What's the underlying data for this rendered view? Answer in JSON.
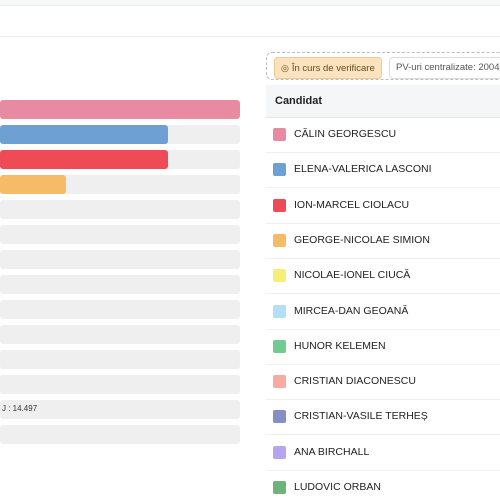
{
  "status": {
    "verifying_label": "În curs de verificare",
    "pv_label": "PV-uri centralizate: 2004"
  },
  "table": {
    "header": "Candidat"
  },
  "bars": [
    {
      "fraction": 1.0,
      "color": "#e98aa3",
      "label": ""
    },
    {
      "fraction": 0.7,
      "color": "#6fa0d4",
      "label": ""
    },
    {
      "fraction": 0.7,
      "color": "#ef4b57",
      "label": ""
    },
    {
      "fraction": 0.275,
      "color": "#f5bb66",
      "label": ""
    },
    {
      "fraction": 0,
      "color": "#efefef",
      "label": ""
    },
    {
      "fraction": 0,
      "color": "#efefef",
      "label": ""
    },
    {
      "fraction": 0,
      "color": "#efefef",
      "label": ""
    },
    {
      "fraction": 0,
      "color": "#efefef",
      "label": ""
    },
    {
      "fraction": 0,
      "color": "#efefef",
      "label": ""
    },
    {
      "fraction": 0,
      "color": "#efefef",
      "label": ""
    },
    {
      "fraction": 0,
      "color": "#efefef",
      "label": ""
    },
    {
      "fraction": 0,
      "color": "#efefef",
      "label": ""
    },
    {
      "fraction": 0,
      "color": "#efefef",
      "label": "J : 14.497"
    },
    {
      "fraction": 0,
      "color": "#efefef",
      "label": ""
    }
  ],
  "candidates": [
    {
      "name": "CĂLIN GEORGESCU",
      "color": "#e98aa3"
    },
    {
      "name": "ELENA-VALERICA LASCONI",
      "color": "#6fa0d4"
    },
    {
      "name": "ION-MARCEL CIOLACU",
      "color": "#ef4b57"
    },
    {
      "name": "GEORGE-NICOLAE SIMION",
      "color": "#f5bb66"
    },
    {
      "name": "NICOLAE-IONEL CIUCĂ",
      "color": "#f6ee78"
    },
    {
      "name": "MIRCEA-DAN GEOANĂ",
      "color": "#b5def8"
    },
    {
      "name": "HUNOR KELEMEN",
      "color": "#72cc92"
    },
    {
      "name": "CRISTIAN DIACONESCU",
      "color": "#f5aaa2"
    },
    {
      "name": "CRISTIAN-VASILE TERHEȘ",
      "color": "#848fc4"
    },
    {
      "name": "ANA BIRCHALL",
      "color": "#b7a4ef"
    },
    {
      "name": "LUDOVIC ORBAN",
      "color": "#6fb37c"
    }
  ]
}
